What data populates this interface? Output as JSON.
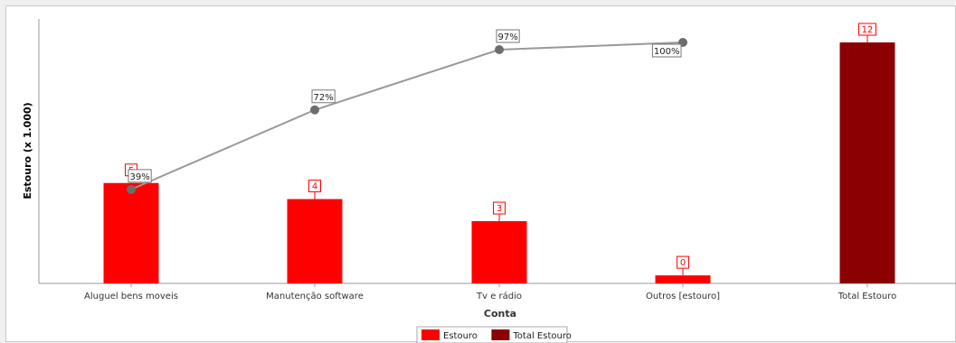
{
  "chart_data": {
    "type": "bar",
    "xlabel": "Conta",
    "ylabel": "Estouro (x 1.000)",
    "ylim": [
      0,
      12
    ],
    "grid": false,
    "legend_position": "bottom",
    "categories": [
      "Aluguel bens moveis",
      "Manutenção software",
      "Tv e rádio",
      "Outros [estouro]",
      "Total Estouro"
    ],
    "series": [
      {
        "name": "Estouro",
        "color": "#ff0000",
        "values": [
          5,
          4,
          3,
          0,
          null
        ],
        "labels": [
          "5",
          "4",
          "3",
          "0",
          null
        ],
        "raw_values": [
          5,
          4.2,
          3.1,
          0.4,
          null
        ]
      },
      {
        "name": "Total Estouro",
        "color": "#8b0000",
        "values": [
          null,
          null,
          null,
          null,
          12
        ],
        "labels": [
          null,
          null,
          null,
          null,
          "12"
        ],
        "raw_values": [
          null,
          null,
          null,
          null,
          12
        ]
      }
    ],
    "cumulative_line": {
      "color": "#999999",
      "marker_color": "#6d6d6d",
      "categories": [
        "Aluguel bens moveis",
        "Manutenção software",
        "Tv e rádio",
        "Outros [estouro]"
      ],
      "percent": [
        39,
        72,
        97,
        100
      ],
      "labels": [
        "39%",
        "72%",
        "97%",
        "100%"
      ]
    },
    "legend": [
      {
        "name": "Estouro",
        "color": "#ff0000"
      },
      {
        "name": "Total Estouro",
        "color": "#8b0000"
      }
    ]
  }
}
